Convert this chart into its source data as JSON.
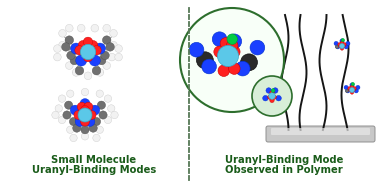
{
  "background_color": "#ffffff",
  "left_title_line1": "Small Molecule",
  "left_title_line2": "Uranyl-Binding Modes",
  "right_title_line1": "Uranyl-Binding Mode",
  "right_title_line2": "Observed in Polymer",
  "title_color": "#1a5c1a",
  "title_fontsize": 7.2,
  "divider_color": "#557755",
  "figsize": [
    3.78,
    1.85
  ],
  "dpi": 100,
  "atom_colors": {
    "U": "#5bc8e8",
    "O": "#ff2020",
    "N": "#1a40ff",
    "C": "#707070",
    "H": "#f2f2f2",
    "Gr": "#404040",
    "P": "#00cc44"
  }
}
